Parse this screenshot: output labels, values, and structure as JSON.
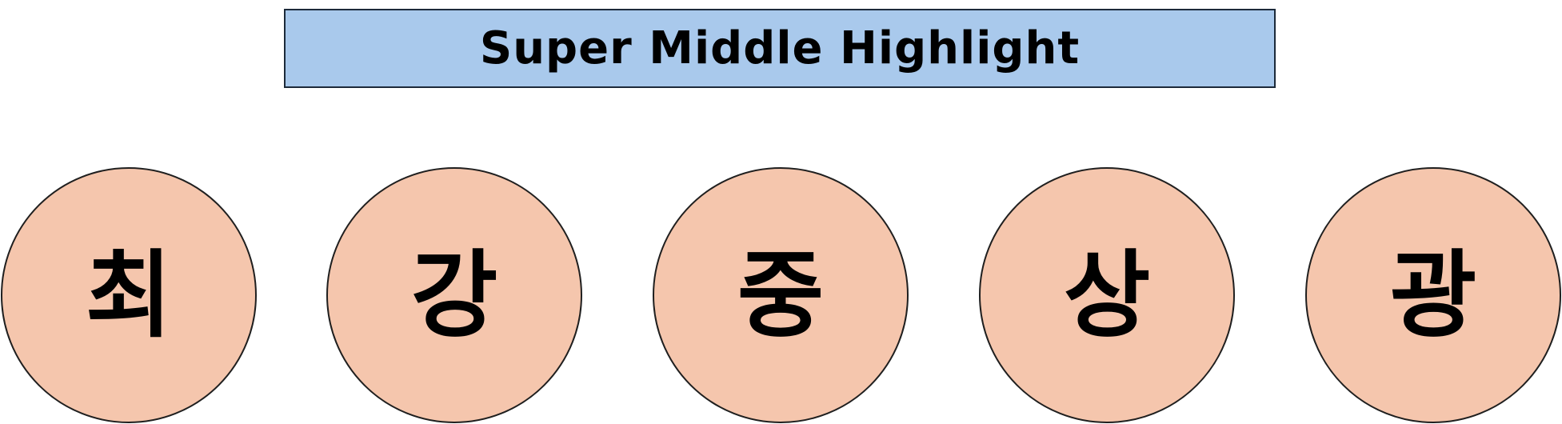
{
  "title": "Super Middle Highlight",
  "colors": {
    "title_fill": "#a9c9ec",
    "circle_fill": "#f5c6ad",
    "outline": "#1f1f1f"
  },
  "circles": [
    {
      "label": "최"
    },
    {
      "label": "강"
    },
    {
      "label": "중"
    },
    {
      "label": "상"
    },
    {
      "label": "광"
    }
  ]
}
